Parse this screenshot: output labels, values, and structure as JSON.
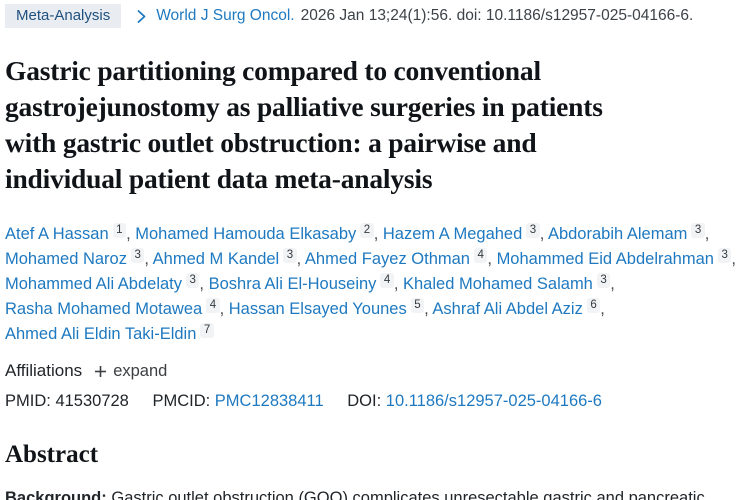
{
  "colors": {
    "link_blue": "#1e79c0",
    "badge_bg": "#e9edf2",
    "badge_text": "#20517e",
    "title_text": "#101418",
    "body_text": "#212529"
  },
  "topbar": {
    "publication_type": "Meta-Analysis",
    "journal": "World J Surg Oncol.",
    "citation_details": "2026 Jan 13;24(1):56. doi: 10.1186/s12957-025-04166-6."
  },
  "article": {
    "title_lines": [
      "Gastric partitioning compared to conventional",
      "gastrojejunostomy as palliative surgeries in patients",
      "with gastric outlet obstruction: a pairwise and",
      "individual patient data meta-analysis"
    ],
    "authors": [
      {
        "name": "Atef A Hassan",
        "sup": "1"
      },
      {
        "name": "Mohamed Hamouda Elkasaby",
        "sup": "2"
      },
      {
        "name": "Hazem A Megahed",
        "sup": "3"
      },
      {
        "name": "Abdorabih Alemam",
        "sup": "3"
      },
      {
        "name": "Mohamed Naroz",
        "sup": "3"
      },
      {
        "name": "Ahmed M Kandel",
        "sup": "3"
      },
      {
        "name": "Ahmed Fayez Othman",
        "sup": "4"
      },
      {
        "name": "Mohammed Eid Abdelrahman",
        "sup": "3"
      },
      {
        "name": "Mohammed Ali Abdelaty",
        "sup": "3"
      },
      {
        "name": "Boshra Ali El-Houseiny",
        "sup": "4"
      },
      {
        "name": "Khaled Mohamed Salamh",
        "sup": "3"
      },
      {
        "name": "Rasha Mohamed Motawea",
        "sup": "4"
      },
      {
        "name": "Hassan Elsayed Younes",
        "sup": "5"
      },
      {
        "name": "Ashraf Ali Abdel Aziz",
        "sup": "6"
      },
      {
        "name": "Ahmed Ali Eldin Taki-Eldin",
        "sup": "7"
      }
    ]
  },
  "affiliations": {
    "label": "Affiliations",
    "expand_label": "expand"
  },
  "identifiers": {
    "pmid_label": "PMID:",
    "pmid_value": "41530728",
    "pmcid_label": "PMCID:",
    "pmcid_value": "PMC12838411",
    "doi_label": "DOI:",
    "doi_value": "10.1186/s12957-025-04166-6"
  },
  "abstract": {
    "heading": "Abstract",
    "background_label": "Background:",
    "background_text": "Gastric outlet obstruction (GOO) complicates unresectable gastric and pancreatic"
  }
}
